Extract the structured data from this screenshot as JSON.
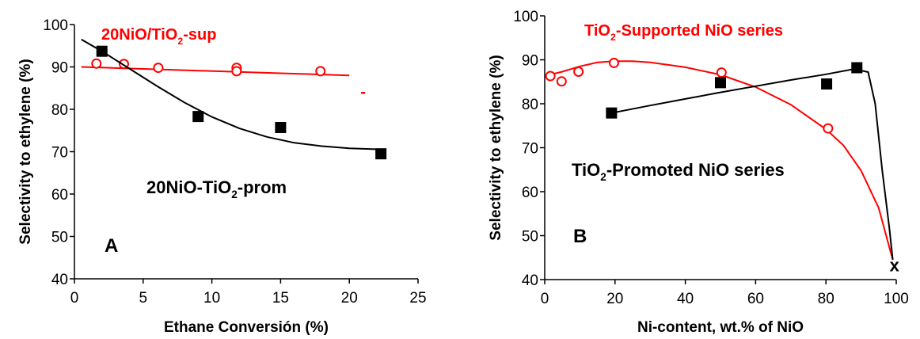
{
  "chart_data": [
    {
      "type": "scatter",
      "panel_label": "A",
      "xlabel": "Ethane Conversión (%)",
      "ylabel": "Selectivity to ethylene (%)",
      "xlim": [
        0,
        25
      ],
      "ylim": [
        40,
        100
      ],
      "xticks": [
        0,
        5,
        10,
        15,
        20,
        25
      ],
      "yticks": [
        40,
        50,
        60,
        70,
        80,
        90,
        100
      ],
      "grid": false,
      "series": [
        {
          "name_parts": [
            "20NiO/TiO",
            "2",
            "-sup"
          ],
          "color": "#ff0000",
          "marker": "open-circle",
          "x": [
            1.6,
            3.6,
            6.1,
            11.8,
            11.8,
            17.9
          ],
          "y": [
            90.8,
            90.7,
            89.8,
            89.8,
            89.0,
            89.0
          ],
          "fit": {
            "x": [
              0.5,
              20.0
            ],
            "y": [
              90.0,
              88.0
            ]
          },
          "extra_marker": {
            "x": 21.0,
            "y": 84.0,
            "symbol": "-"
          }
        },
        {
          "name_parts": [
            "20NiO-TiO",
            "2",
            "-prom"
          ],
          "color": "#000000",
          "marker": "filled-square",
          "x": [
            2.0,
            9.0,
            15.0,
            22.3
          ],
          "y": [
            93.7,
            78.3,
            75.7,
            69.5
          ],
          "fit": {
            "x": [
              0.5,
              2,
              4,
              6,
              8,
              10,
              12,
              14,
              16,
              18,
              20,
              22.5
            ],
            "y": [
              96.5,
              93.7,
              89.6,
              85.5,
              81.6,
              78.2,
              75.5,
              73.5,
              72.1,
              71.3,
              70.8,
              70.5
            ]
          }
        }
      ]
    },
    {
      "type": "scatter",
      "panel_label": "B",
      "xlabel": "Ni-content, wt.% of NiO",
      "ylabel": "Selectivity to ethylene (%)",
      "xlim": [
        0,
        100
      ],
      "ylim": [
        40,
        100
      ],
      "xticks": [
        0,
        20,
        40,
        60,
        80,
        100
      ],
      "yticks": [
        40,
        50,
        60,
        70,
        80,
        90,
        100
      ],
      "grid": false,
      "series": [
        {
          "name_parts": [
            "TiO",
            "2",
            "-Supported NiO series"
          ],
          "color": "#ff0000",
          "marker": "open-circle",
          "x": [
            1.6,
            4.8,
            9.6,
            19.7,
            50.3,
            80.6
          ],
          "y": [
            86.3,
            85.1,
            87.3,
            89.3,
            87.1,
            74.4
          ],
          "fit": {
            "x": [
              1,
              5,
              10,
              15,
              20,
              25,
              30,
              40,
              50,
              60,
              70,
              80,
              85,
              90,
              95,
              99
            ],
            "y": [
              86.5,
              87.3,
              88.5,
              89.4,
              89.7,
              89.7,
              89.4,
              88.3,
              86.6,
              83.8,
              79.8,
              74.2,
              70.5,
              64.8,
              56.3,
              44.5
            ]
          }
        },
        {
          "name_parts": [
            "TiO",
            "2",
            "-Promoted NiO series"
          ],
          "color": "#000000",
          "marker": "filled-square",
          "x": [
            19.0,
            50.0,
            80.2,
            88.8
          ],
          "y": [
            77.9,
            84.8,
            84.5,
            88.2
          ],
          "fit": {
            "x": [
              19,
              30,
              40,
              50,
              60,
              70,
              80,
              88,
              92,
              94,
              96,
              98,
              99
            ],
            "y": [
              77.9,
              79.6,
              81.1,
              82.6,
              84.0,
              85.4,
              86.7,
              87.9,
              87.2,
              80.0,
              65.0,
              52.0,
              44.5
            ]
          }
        }
      ],
      "end_marker": {
        "x": 99.5,
        "y": 43.0,
        "label": "x"
      }
    }
  ]
}
